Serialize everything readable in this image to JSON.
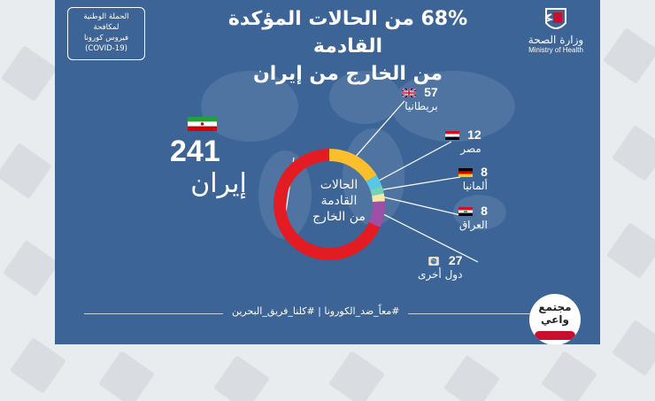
{
  "title": {
    "line1": "68% من الحالات المؤكدة القادمة",
    "line2": "من الخارج من إيران"
  },
  "campaign": {
    "lines": [
      "الحملة الوطنية",
      "لمكافحة",
      "فيروس كورونا",
      "(COVID-19)"
    ]
  },
  "ministry": {
    "arabic": "وزارة الصحة",
    "english": "Ministry of Health"
  },
  "iran": {
    "value": "241",
    "label": "إيران"
  },
  "center_label": {
    "line1": "الحالات",
    "line2": "القادمة",
    "line3": "من الخارج"
  },
  "footer": {
    "hashtags": "#معاً_ضد_الكورونا | #كلنا_فريق_البحرين"
  },
  "badge": {
    "line1": "مجتمع",
    "line2": "واعي"
  },
  "colors": {
    "background": "#3c6496",
    "iran": "#e31b23",
    "uk": "#fcbf2c",
    "egypt": "#58c8e6",
    "germany": "#74d3b7",
    "iraq": "#f6e7a1",
    "others": "#9e4fa6"
  },
  "chart_data": {
    "type": "pie",
    "title": "68% من الحالات المؤكدة القادمة من الخارج من إيران",
    "categories": [
      "إيران",
      "بريطانيا",
      "مصر",
      "ألمانيا",
      "العراق",
      "دول أخرى"
    ],
    "values": [
      241,
      57,
      12,
      8,
      8,
      27
    ],
    "labels": [
      {
        "key": "uk",
        "value": "57",
        "name": "بريطانيا"
      },
      {
        "key": "egypt",
        "value": "12",
        "name": "مصر"
      },
      {
        "key": "germany",
        "value": "8",
        "name": "ألمانيا"
      },
      {
        "key": "iraq",
        "value": "8",
        "name": "العراق"
      },
      {
        "key": "others",
        "value": "27",
        "name": "دول أخرى"
      }
    ]
  }
}
